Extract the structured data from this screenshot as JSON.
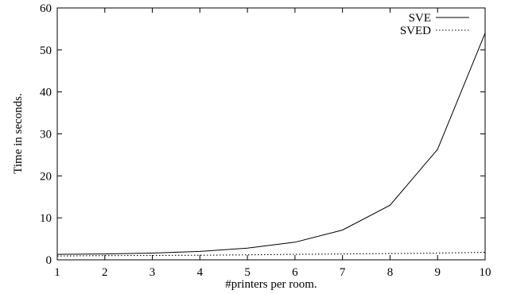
{
  "chart_data": {
    "type": "line",
    "xlabel": "#printers per room.",
    "ylabel": "Time in seconds.",
    "xlim": [
      1,
      10
    ],
    "ylim": [
      0,
      60
    ],
    "xticks": [
      1,
      2,
      3,
      4,
      5,
      6,
      7,
      8,
      9,
      10
    ],
    "yticks": [
      0,
      10,
      20,
      30,
      40,
      50,
      60
    ],
    "grid": false,
    "legend_position": "top-right",
    "x": [
      1,
      2,
      3,
      4,
      5,
      6,
      7,
      8,
      9,
      10
    ],
    "series": [
      {
        "name": "SVE",
        "line_style": "solid",
        "values": [
          1.3,
          1.4,
          1.6,
          2.0,
          2.8,
          4.2,
          7.1,
          13.0,
          26.3,
          54.0
        ]
      },
      {
        "name": "SVED",
        "line_style": "dotted",
        "values": [
          0.9,
          1.0,
          1.05,
          1.1,
          1.2,
          1.3,
          1.4,
          1.5,
          1.6,
          1.8
        ]
      }
    ]
  }
}
